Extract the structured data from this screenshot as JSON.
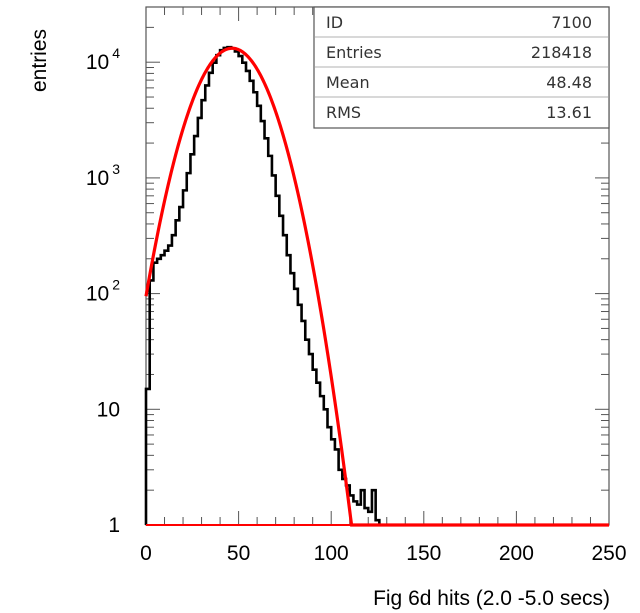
{
  "chart_data": {
    "type": "histogram",
    "xlabel": "Fig 6d   hits (2.0 -5.0 secs)",
    "ylabel": "entries",
    "xlim": [
      0,
      250
    ],
    "ylim": [
      1,
      30000
    ],
    "yscale": "log",
    "x_ticks": [
      "0",
      "50",
      "100",
      "150",
      "200",
      "250"
    ],
    "y_ticks": [
      {
        "value": 1,
        "base": "1",
        "exp": ""
      },
      {
        "value": 10,
        "base": "10",
        "exp": ""
      },
      {
        "value": 100,
        "base": "10",
        "exp": "2"
      },
      {
        "value": 1000,
        "base": "10",
        "exp": "3"
      },
      {
        "value": 10000,
        "base": "10",
        "exp": "4"
      }
    ],
    "grid": false,
    "stats_box": {
      "rows": [
        {
          "label": "ID",
          "value": "7100"
        },
        {
          "label": "Entries",
          "value": "218418"
        },
        {
          "label": "Mean",
          "value": "48.48"
        },
        {
          "label": "RMS",
          "value": "13.61"
        }
      ]
    },
    "series": [
      {
        "kind": "histogram",
        "color": "#000000",
        "bin_width": 2,
        "x": [
          0,
          2,
          4,
          6,
          8,
          10,
          12,
          14,
          16,
          18,
          20,
          22,
          24,
          26,
          28,
          30,
          32,
          34,
          36,
          38,
          40,
          42,
          44,
          46,
          48,
          50,
          52,
          54,
          56,
          58,
          60,
          62,
          64,
          66,
          68,
          70,
          72,
          74,
          76,
          78,
          80,
          82,
          84,
          86,
          88,
          90,
          92,
          94,
          96,
          98,
          100,
          102,
          104,
          106,
          108,
          110,
          112,
          114,
          116,
          118,
          120,
          122,
          124
        ],
        "values": [
          15,
          130,
          185,
          200,
          215,
          235,
          260,
          320,
          430,
          560,
          780,
          1100,
          1600,
          2300,
          3300,
          4700,
          6300,
          8100,
          9900,
          11500,
          12700,
          13300,
          13500,
          13200,
          12400,
          11300,
          9900,
          8400,
          6900,
          5500,
          4200,
          3100,
          2200,
          1550,
          1050,
          700,
          470,
          320,
          215,
          150,
          110,
          80,
          58,
          40,
          30,
          22,
          17,
          13,
          10,
          7,
          5.5,
          4.5,
          3,
          2.5,
          2.2,
          1.8,
          1.6,
          1.5,
          2,
          1.4,
          1.3,
          2,
          1.1
        ]
      },
      {
        "kind": "gaussian-fit",
        "color": "#ff0000",
        "peak": 13200,
        "mean": 46.5,
        "sigma": 14.8,
        "x_range": [
          0,
          250
        ]
      }
    ]
  }
}
